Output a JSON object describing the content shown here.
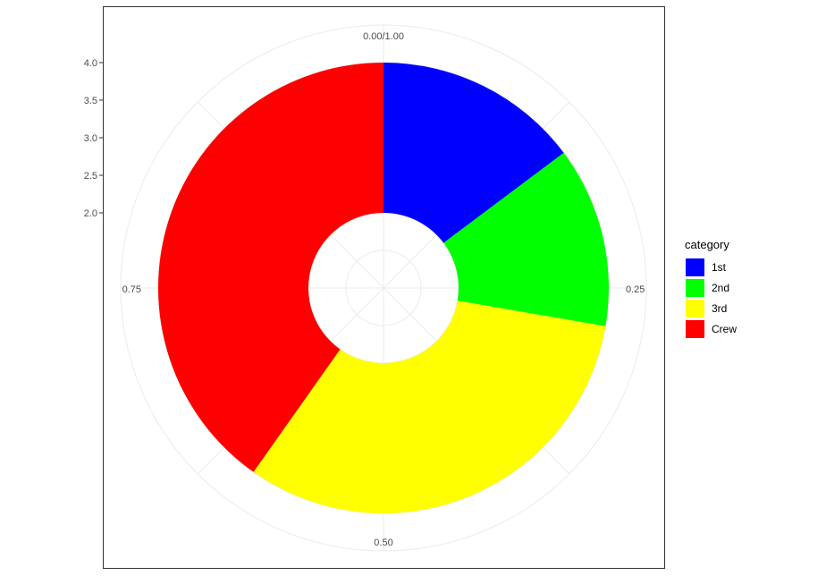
{
  "chart_data": {
    "type": "pie",
    "style": "donut",
    "slices": [
      {
        "label": "1st",
        "value": 325,
        "color": "#0000FF"
      },
      {
        "label": "2nd",
        "value": 285,
        "color": "#00FF00"
      },
      {
        "label": "3rd",
        "value": 706,
        "color": "#FFFF00"
      },
      {
        "label": "Crew",
        "value": 885,
        "color": "#FF0000"
      }
    ],
    "theta_ticks": [
      "0.00/1.00",
      "0.25",
      "0.50",
      "0.75"
    ],
    "radial_ticks": [
      "2.0",
      "2.5",
      "3.0",
      "3.5",
      "4.0"
    ],
    "radial_range": [
      1,
      4
    ],
    "donut_inner": 2,
    "legend": {
      "title": "category",
      "position": "right"
    },
    "grid": true
  }
}
